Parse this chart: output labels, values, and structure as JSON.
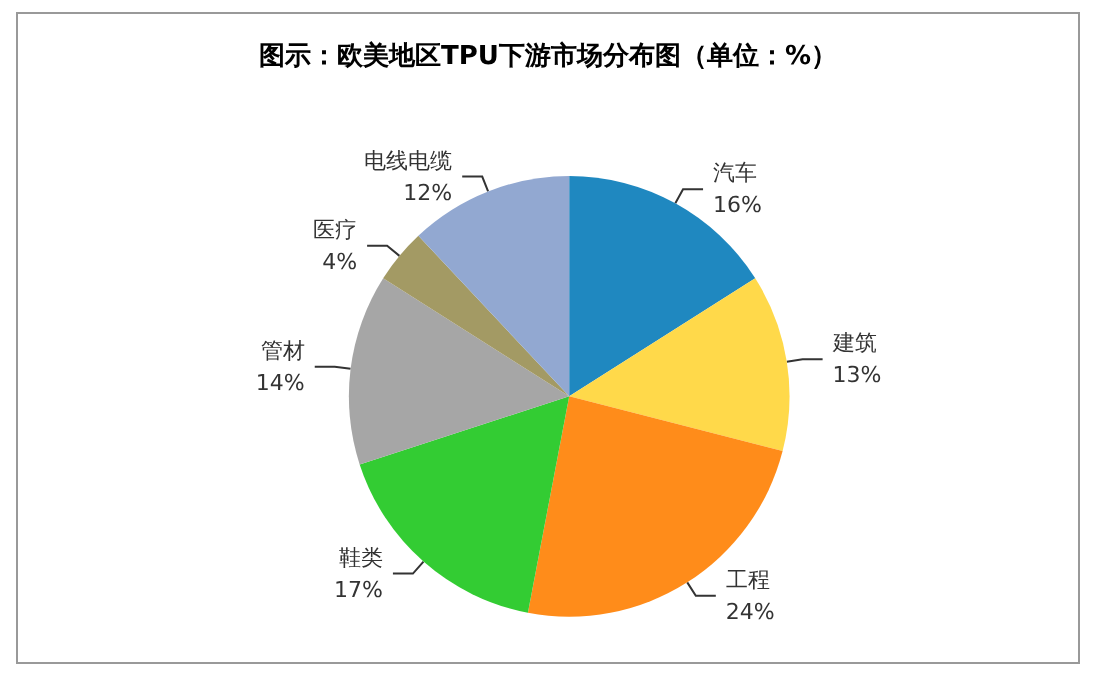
{
  "chart_data": {
    "type": "pie",
    "title": "图示：欧美地区TPU下游市场分布图（单位：%）",
    "categories": [
      "汽车",
      "建筑",
      "工程",
      "鞋类",
      "管材",
      "医疗",
      "电线电缆"
    ],
    "values": [
      16,
      13,
      24,
      17,
      14,
      4,
      12
    ],
    "colors": [
      "#1f88c0",
      "#ffd94a",
      "#ff8c1a",
      "#33cc33",
      "#a6a6a6",
      "#a39a64",
      "#92a8d1"
    ],
    "value_labels": [
      "16%",
      "13%",
      "24%",
      "17%",
      "14%",
      "4%",
      "12%"
    ],
    "legend": false
  }
}
